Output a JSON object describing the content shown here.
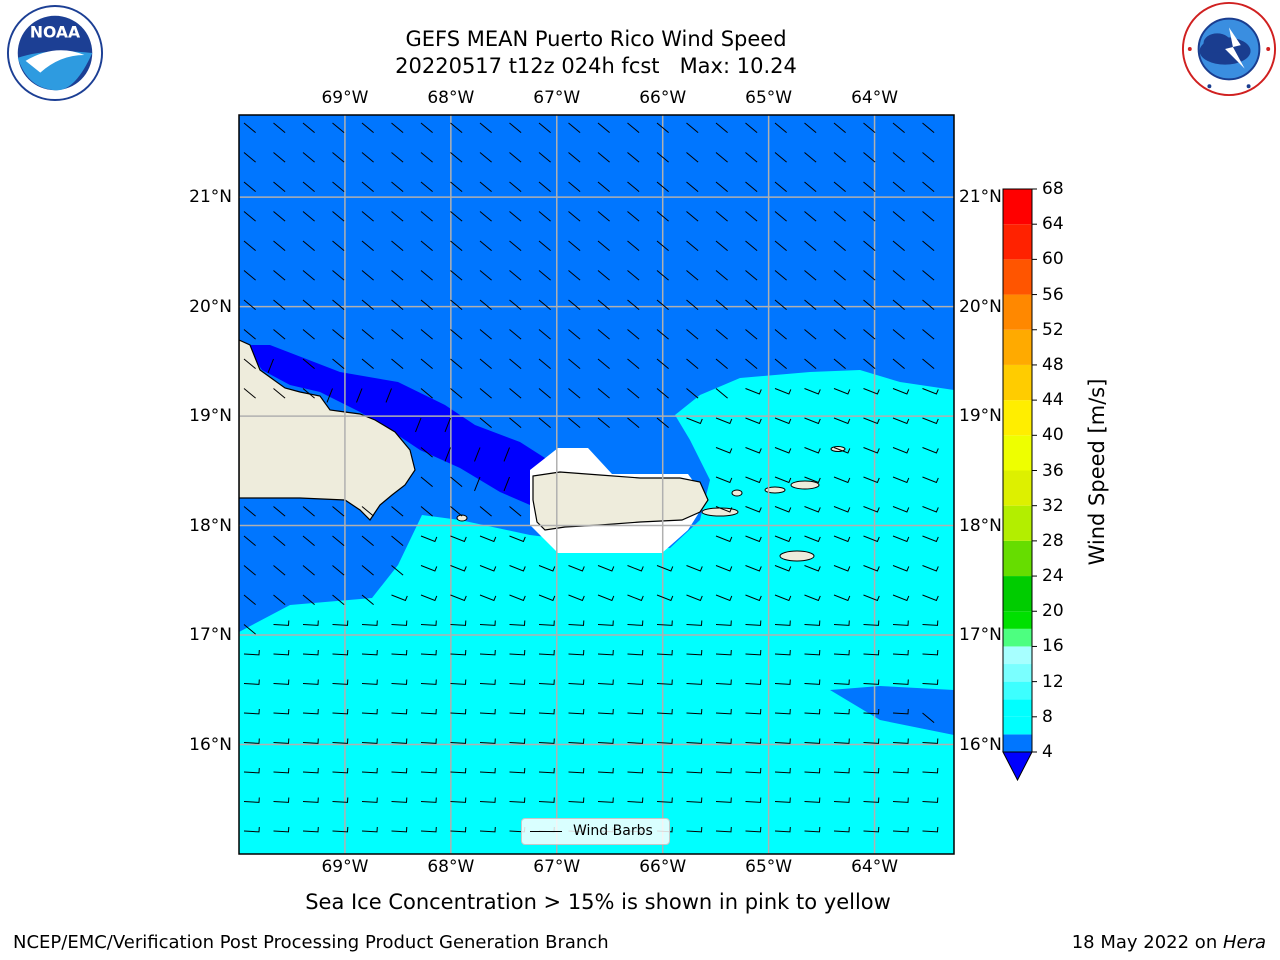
{
  "title": {
    "line1": "GEFS MEAN Puerto Rico Wind Speed",
    "line2": "20220517 t12z 024h fcst   Max: 10.24"
  },
  "map": {
    "lon_range": [
      -70.0,
      -63.25
    ],
    "lat_range": [
      15.0,
      21.75
    ],
    "lon_ticks": [
      "69°W",
      "68°W",
      "67°W",
      "66°W",
      "65°W",
      "64°W"
    ],
    "lat_ticks": [
      "16°N",
      "17°N",
      "18°N",
      "19°N",
      "20°N",
      "21°N"
    ],
    "gridlines": true,
    "wind_barbs": true
  },
  "legend": {
    "label": "Wind Barbs",
    "placement": "bottom-center"
  },
  "colorbar": {
    "label": "Wind Speed [m/s]",
    "ticks": [
      "4",
      "8",
      "12",
      "16",
      "20",
      "24",
      "28",
      "32",
      "36",
      "40",
      "44",
      "48",
      "52",
      "56",
      "60",
      "64",
      "68"
    ],
    "levels": [
      4,
      6,
      8,
      10,
      12,
      14,
      16,
      18,
      20,
      24,
      28,
      32,
      36,
      40,
      44,
      48,
      52,
      56,
      60,
      64,
      68
    ],
    "colors": [
      "#0076ff",
      "#00ffff",
      "#00ffff",
      "#3dffff",
      "#7affff",
      "#a7ffff",
      "#4dff80",
      "#00e000",
      "#00cc00",
      "#66dd00",
      "#b3ee00",
      "#ddf000",
      "#eeff00",
      "#ffee00",
      "#ffcc00",
      "#ffaa00",
      "#ff8800",
      "#ff5500",
      "#ff2200",
      "#ff0000"
    ],
    "under_color": "#0000ff"
  },
  "fields": {
    "sea_fill": "#0076ff",
    "calm_band": "#0000ff",
    "moderate": "#00ffff",
    "land": "#eeecdc"
  },
  "logos": {
    "left": "noaa-logo",
    "right": "nws-logo"
  },
  "subtitle": "Sea Ice Concentration > 15% is shown in pink to yellow",
  "footer": {
    "left": "NCEP/EMC/Verification Post Processing Product Generation Branch",
    "right_prefix": "18 May 2022 on ",
    "right_host": "Hera"
  }
}
